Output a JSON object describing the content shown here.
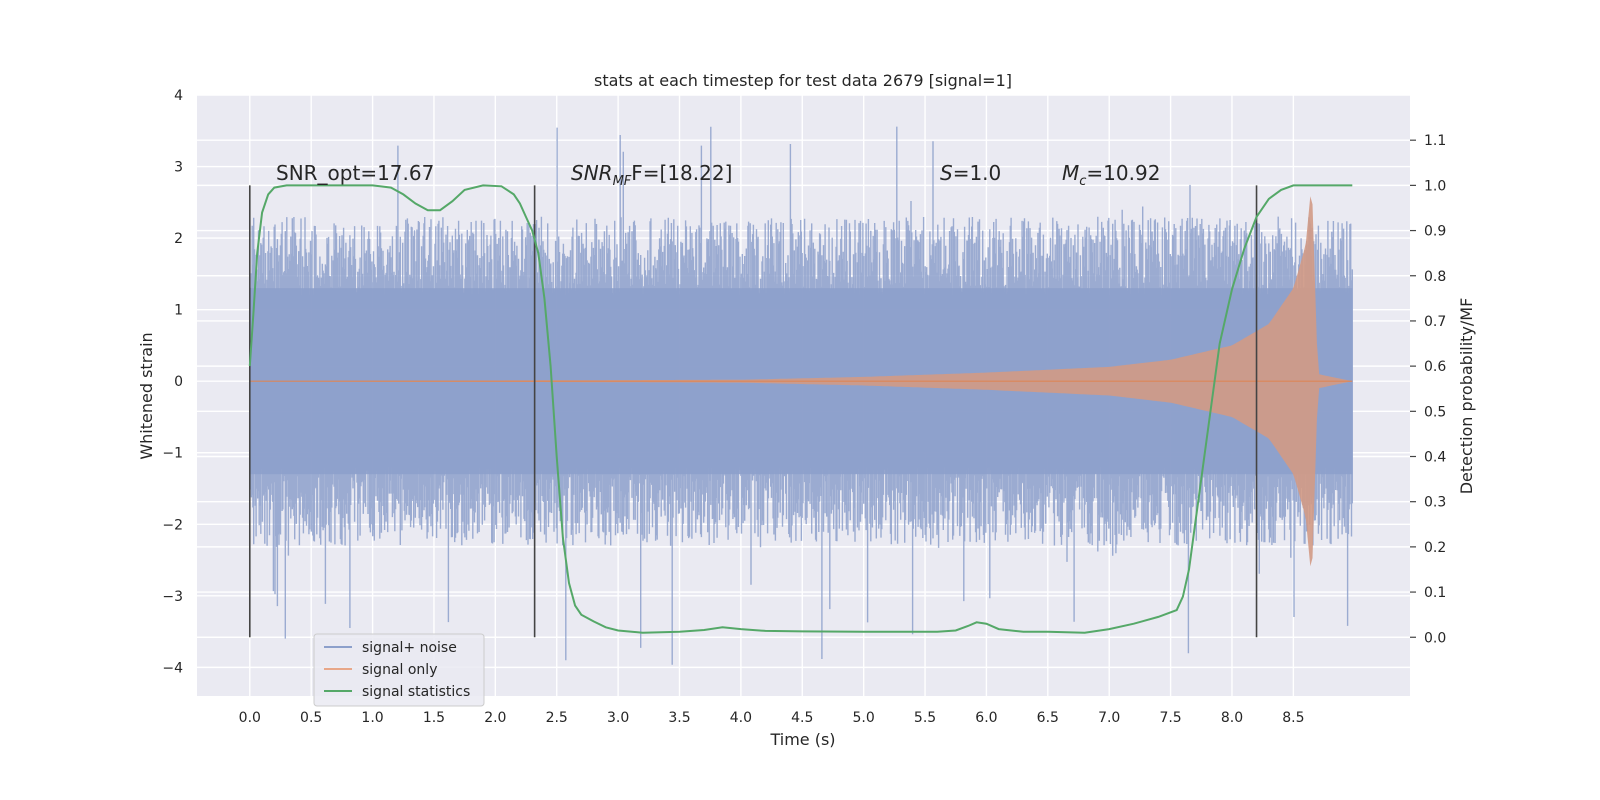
{
  "chart_data": {
    "type": "line",
    "title": "stats at each timestep for test data 2679 [signal=1]",
    "xlabel": "Time (s)",
    "ylabel": "Whitened strain",
    "y2label": "Detection probability/MF",
    "xlim": [
      -0.43,
      9.45
    ],
    "ylim": [
      -4.4,
      4.0
    ],
    "y2lim": [
      -0.13,
      1.2
    ],
    "x_ticks": [
      "0.0",
      "0.5",
      "1.0",
      "1.5",
      "2.0",
      "2.5",
      "3.0",
      "3.5",
      "4.0",
      "4.5",
      "5.0",
      "5.5",
      "6.0",
      "6.5",
      "7.0",
      "7.5",
      "8.0",
      "8.5"
    ],
    "y_ticks": [
      "−4",
      "−3",
      "−2",
      "−1",
      "0",
      "1",
      "2",
      "3",
      "4"
    ],
    "y2_ticks": [
      "0.0",
      "0.1",
      "0.2",
      "0.3",
      "0.4",
      "0.5",
      "0.6",
      "0.7",
      "0.8",
      "0.9",
      "1.0",
      "1.1"
    ],
    "annotations": {
      "snr_opt": "SNR_opt=17.67",
      "snr_mf_main": "SNR",
      "snr_mf_sub": "MF",
      "snr_mf_rest": "F=[18.22]",
      "s_main": "S",
      "s_rest": "=1.0",
      "mc_main": "M",
      "mc_sub": "c",
      "mc_rest": "=10.92"
    },
    "vertical_markers_s": [
      0.0,
      2.32,
      8.2
    ],
    "series": [
      {
        "name": "signal+ noise",
        "color": "#8da0cb",
        "x_range": [
          0.0,
          8.98
        ],
        "core_band": [
          -1.3,
          1.3
        ],
        "typical_peaks": [
          -2.3,
          2.3
        ],
        "max_spikes": [
          -4.0,
          3.6
        ]
      },
      {
        "name": "signal only",
        "color": "#dd8452",
        "x_range": [
          0.0,
          8.98
        ],
        "merger_time": 8.65,
        "envelope": [
          [
            0.0,
            0.0
          ],
          [
            4.0,
            0.02
          ],
          [
            5.0,
            0.06
          ],
          [
            6.0,
            0.12
          ],
          [
            7.0,
            0.2
          ],
          [
            7.5,
            0.3
          ],
          [
            8.0,
            0.5
          ],
          [
            8.3,
            0.8
          ],
          [
            8.5,
            1.3
          ],
          [
            8.6,
            1.9
          ],
          [
            8.65,
            2.8
          ],
          [
            8.7,
            0.1
          ],
          [
            8.98,
            0.0
          ]
        ]
      },
      {
        "name": "signal statistics",
        "color": "#55a868",
        "x": [
          0.0,
          0.03,
          0.06,
          0.1,
          0.15,
          0.2,
          0.3,
          0.5,
          0.8,
          1.0,
          1.15,
          1.25,
          1.35,
          1.45,
          1.55,
          1.65,
          1.75,
          1.9,
          2.05,
          2.15,
          2.2,
          2.25,
          2.3,
          2.35,
          2.4,
          2.45,
          2.5,
          2.55,
          2.6,
          2.65,
          2.7,
          2.8,
          2.9,
          3.0,
          3.2,
          3.5,
          3.7,
          3.85,
          4.0,
          4.2,
          4.5,
          5.0,
          5.3,
          5.6,
          5.75,
          5.85,
          5.92,
          6.0,
          6.1,
          6.3,
          6.5,
          6.8,
          7.0,
          7.2,
          7.4,
          7.55,
          7.6,
          7.65,
          7.7,
          7.8,
          7.9,
          8.0,
          8.1,
          8.2,
          8.3,
          8.4,
          8.5,
          8.6,
          8.7,
          8.8,
          8.9,
          8.98
        ],
        "values": [
          0.6,
          0.72,
          0.85,
          0.94,
          0.98,
          0.995,
          1.0,
          1.0,
          1.0,
          1.0,
          0.995,
          0.98,
          0.96,
          0.945,
          0.945,
          0.965,
          0.99,
          1.0,
          0.998,
          0.98,
          0.96,
          0.93,
          0.9,
          0.85,
          0.75,
          0.6,
          0.4,
          0.22,
          0.12,
          0.07,
          0.05,
          0.035,
          0.022,
          0.015,
          0.01,
          0.012,
          0.016,
          0.022,
          0.018,
          0.014,
          0.013,
          0.012,
          0.012,
          0.012,
          0.015,
          0.025,
          0.033,
          0.03,
          0.018,
          0.012,
          0.012,
          0.01,
          0.018,
          0.03,
          0.045,
          0.06,
          0.09,
          0.15,
          0.25,
          0.45,
          0.65,
          0.77,
          0.86,
          0.93,
          0.97,
          0.99,
          1.0,
          1.0,
          1.0,
          1.0,
          1.0,
          1.0
        ]
      }
    ],
    "legend": {
      "placement": "lower-left",
      "labels": [
        "signal+ noise",
        "signal only",
        "signal statistics"
      ]
    }
  }
}
